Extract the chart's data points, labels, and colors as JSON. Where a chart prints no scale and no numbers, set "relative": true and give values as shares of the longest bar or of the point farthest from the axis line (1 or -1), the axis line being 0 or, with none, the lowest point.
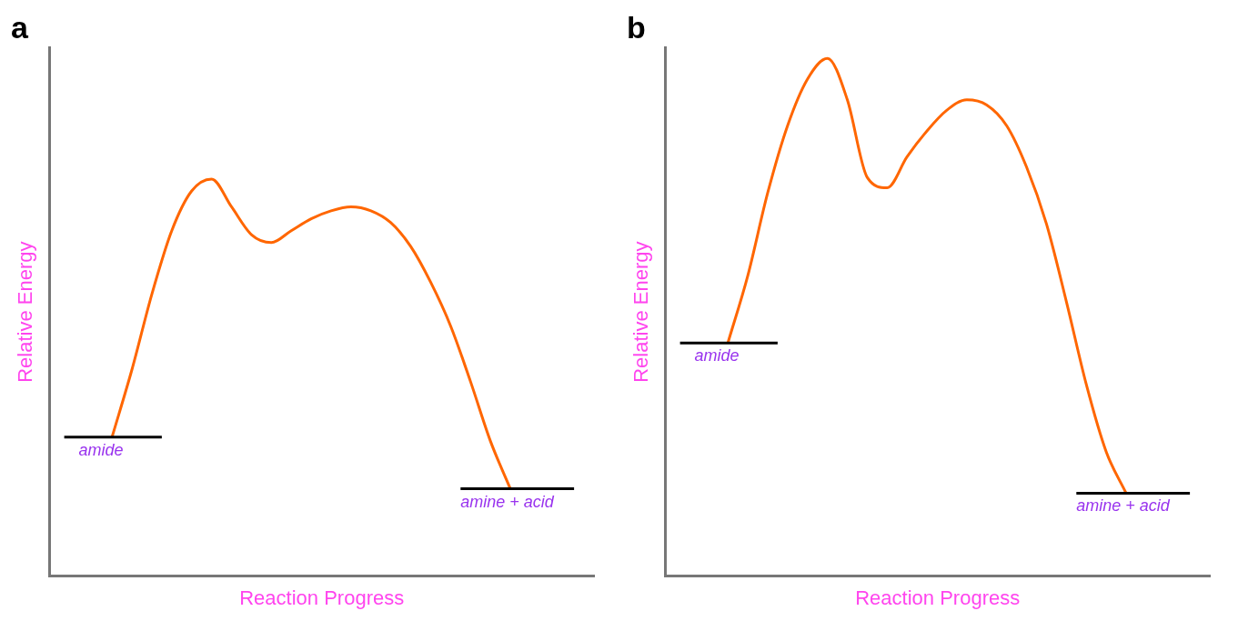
{
  "chart_data": [
    {
      "type": "line",
      "title": "a",
      "xlabel": "Reaction Progress",
      "ylabel": "Relative Energy",
      "relative": true,
      "marker": "none",
      "line_style": "solid",
      "categories": [
        null,
        null,
        null,
        null,
        null,
        null,
        null,
        null,
        null,
        null,
        null,
        null,
        null,
        null,
        null,
        null,
        null,
        null,
        null,
        null,
        null
      ],
      "series": [
        {
          "color": "#ff6600",
          "values": [
            0.35,
            0.52,
            0.71,
            0.87,
            0.97,
            1,
            0.93,
            0.86,
            0.84,
            0.87,
            0.9,
            0.92,
            0.93,
            0.92,
            0.89,
            0.83,
            0.74,
            0.63,
            0.49,
            0.34,
            0.22
          ]
        }
      ],
      "ref_lines": [
        {
          "axis": "y",
          "value": 0.35,
          "label": "amide",
          "color": "#000000"
        },
        {
          "axis": "y",
          "value": 0.22,
          "label": "amine + acid",
          "color": "#000000"
        }
      ]
    },
    {
      "type": "line",
      "title": "b",
      "xlabel": "Reaction Progress",
      "ylabel": "Relative Energy",
      "relative": true,
      "marker": "none",
      "line_style": "solid",
      "categories": [
        null,
        null,
        null,
        null,
        null,
        null,
        null,
        null,
        null,
        null,
        null,
        null,
        null,
        null,
        null,
        null,
        null,
        null,
        null,
        null,
        null
      ],
      "series": [
        {
          "color": "#ff6600",
          "values": [
            0.45,
            0.58,
            0.74,
            0.87,
            0.96,
            1,
            0.92,
            0.77,
            0.75,
            0.81,
            0.86,
            0.9,
            0.92,
            0.91,
            0.87,
            0.79,
            0.68,
            0.53,
            0.37,
            0.24,
            0.16
          ]
        }
      ],
      "ref_lines": [
        {
          "axis": "y",
          "value": 0.45,
          "label": "amide",
          "color": "#000000"
        },
        {
          "axis": "y",
          "value": 0.16,
          "label": "amine + acid",
          "color": "#000000"
        }
      ]
    }
  ]
}
